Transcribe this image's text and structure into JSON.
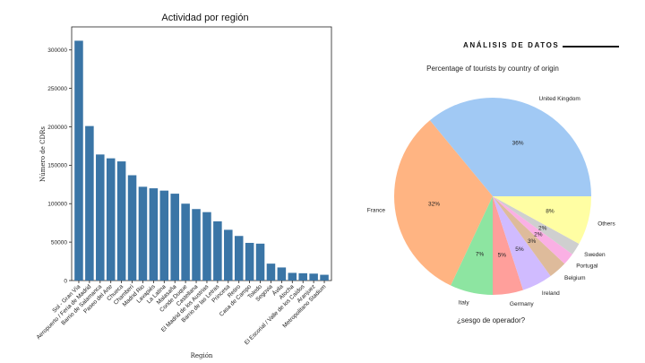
{
  "header": {
    "section_label": "ANÁLISIS DE DATOS"
  },
  "note": "¿sesgo de operador?",
  "chart_data": [
    {
      "type": "bar",
      "title": "Actividad por región",
      "xlabel": "Región",
      "ylabel": "Número de CDRs",
      "ylim": [
        0,
        330000
      ],
      "yticks": [
        0,
        50000,
        100000,
        150000,
        200000,
        250000,
        300000
      ],
      "grid": false,
      "color": "#3a75a6",
      "categories": [
        "Sol - Gran Vía",
        "Aeropuerto / Feria de Madrid",
        "Barrio de Salamanca",
        "Paseo del Arte",
        "Chueca",
        "Chamberí",
        "Madrid Rio",
        "Lavapiés",
        "La Latina",
        "Malasaña",
        "Conde Duque",
        "Castellana",
        "El Madrid de los Austrias",
        "Barrio de las Letras",
        "Princesa",
        "Retiro",
        "Casa de Campo",
        "Toledo",
        "Segovia",
        "Ávila",
        "Atocha",
        "El Escorial / Valle de los Caídos",
        "Aranjuez",
        "Metropolitano Stadium"
      ],
      "values": [
        312000,
        201000,
        164000,
        159000,
        155000,
        137000,
        122000,
        120000,
        117000,
        113000,
        100000,
        93000,
        89000,
        77000,
        66000,
        58000,
        49000,
        48000,
        22000,
        17000,
        10000,
        9500,
        9000,
        7500
      ]
    },
    {
      "type": "pie",
      "title": "Percentage of tourists by country of origin",
      "labels": [
        "United Kingdom",
        "France",
        "Italy",
        "Germany",
        "Ireland",
        "Belgium",
        "Portugal",
        "Sweden",
        "Others"
      ],
      "values": [
        36,
        32,
        7,
        5,
        5,
        3,
        2,
        2,
        8
      ],
      "pct_labels": [
        "36%",
        "32%",
        "7%",
        "5%",
        "5%",
        "3%",
        "2%",
        "2%",
        "8%"
      ],
      "colors": [
        "#a1c9f4",
        "#ffb482",
        "#8de5a1",
        "#ff9f9b",
        "#d0bbff",
        "#debb9b",
        "#fab0e4",
        "#cfcfcf",
        "#fffea3"
      ],
      "start_angle": 0,
      "direction": "counterclockwise"
    }
  ]
}
